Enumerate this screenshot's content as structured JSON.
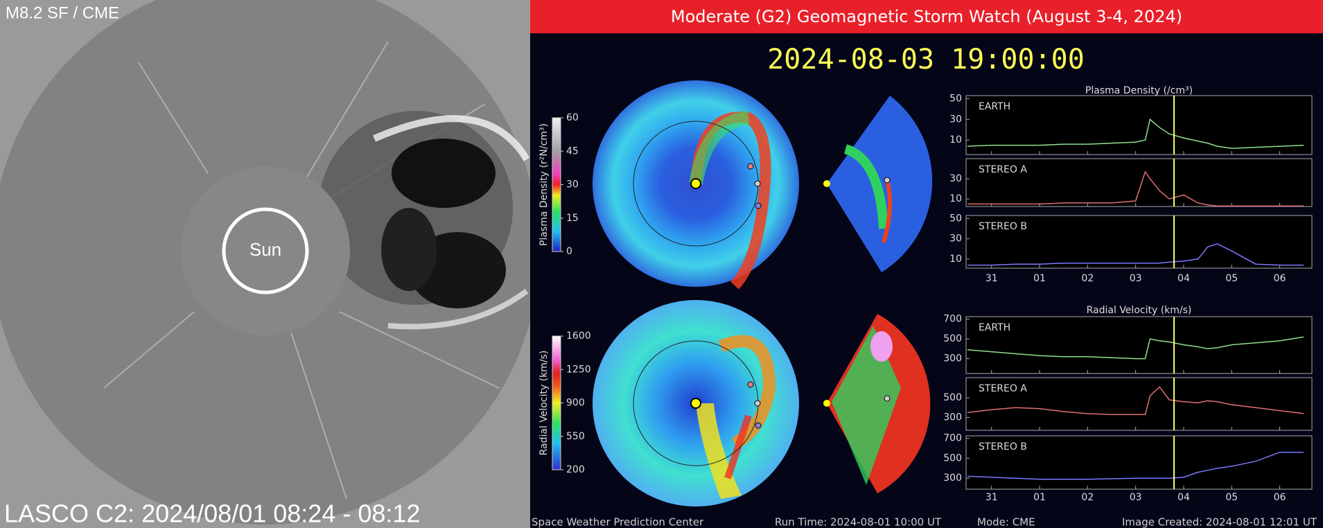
{
  "lasco": {
    "label": "M8.2 SF / CME",
    "sun_label": "Sun",
    "caption": "LASCO C2: 2024/08/01 08:24 - 08:12"
  },
  "enlil": {
    "title": "Moderate (G2) Geomagnetic Storm Watch (August 3-4, 2024)",
    "timestamp": "2024-08-03 19:00:00",
    "density_colorbar": {
      "label": "Plasma Density (r²N/cm³)",
      "lim": [
        0,
        60
      ],
      "ticks": [
        0,
        15,
        30,
        45,
        60
      ]
    },
    "velocity_colorbar": {
      "label": "Radial Velocity (km/s)",
      "lim": [
        200,
        1600
      ],
      "ticks": [
        200,
        550,
        900,
        1250,
        1600
      ]
    },
    "density_plot": {
      "title": "Plasma Density (/cm³)",
      "x": [
        -0.5,
        0,
        0.5,
        1,
        1.5,
        2,
        2.5,
        3,
        3.2,
        3.3,
        3.5,
        3.7,
        4,
        4.3,
        4.5,
        4.7,
        5,
        5.5,
        6,
        6.5
      ],
      "xlim": [
        -0.53,
        6.67
      ],
      "xticks": [
        {
          "value": 0,
          "label": "31"
        },
        {
          "value": 1,
          "label": "01"
        },
        {
          "value": 2,
          "label": "02"
        },
        {
          "value": 3,
          "label": "03"
        },
        {
          "value": 4,
          "label": "04"
        },
        {
          "value": 5,
          "label": "05"
        },
        {
          "value": 6,
          "label": "06"
        }
      ],
      "now": 3.8,
      "panels": [
        {
          "name": "EARTH",
          "color": "#8fe08f",
          "ylim": [
            -4,
            53
          ],
          "yticks": [
            10,
            30,
            50
          ],
          "values": [
            4,
            5,
            5,
            5,
            6,
            6,
            7,
            8,
            10,
            30,
            22,
            16,
            12,
            9,
            7,
            4,
            2,
            3,
            4,
            5
          ]
        },
        {
          "name": "STEREO A",
          "color": "#e07070",
          "ylim": [
            2.5,
            50
          ],
          "yticks": [
            10,
            30
          ],
          "values": [
            5,
            5,
            5,
            5,
            6,
            6,
            6,
            8,
            37,
            30,
            18,
            10,
            14,
            6,
            4,
            3,
            3,
            3,
            3,
            3
          ]
        },
        {
          "name": "STEREO B",
          "color": "#7a7aff",
          "ylim": [
            1,
            53
          ],
          "yticks": [
            10,
            30,
            50
          ],
          "values": [
            4,
            4,
            5,
            5,
            6,
            6,
            6,
            6,
            6,
            6,
            6,
            7,
            8,
            10,
            22,
            25,
            18,
            5,
            4,
            4
          ]
        }
      ]
    },
    "velocity_plot": {
      "title": "Radial Velocity (km/s)",
      "x": [
        -0.5,
        0,
        0.5,
        1,
        1.5,
        2,
        2.5,
        3,
        3.2,
        3.3,
        3.5,
        3.7,
        4,
        4.3,
        4.5,
        4.7,
        5,
        5.5,
        6,
        6.5
      ],
      "xlim": [
        -0.53,
        6.67
      ],
      "xticks": [
        {
          "value": 0,
          "label": "31"
        },
        {
          "value": 1,
          "label": "01"
        },
        {
          "value": 2,
          "label": "02"
        },
        {
          "value": 3,
          "label": "03"
        },
        {
          "value": 4,
          "label": "04"
        },
        {
          "value": 5,
          "label": "05"
        },
        {
          "value": 6,
          "label": "06"
        }
      ],
      "now": 3.8,
      "panels": [
        {
          "name": "EARTH",
          "color": "#8fe08f",
          "ylim": [
            150,
            725
          ],
          "yticks": [
            300,
            500,
            700
          ],
          "values": [
            390,
            370,
            350,
            330,
            320,
            320,
            310,
            300,
            300,
            500,
            480,
            470,
            440,
            420,
            400,
            410,
            440,
            460,
            480,
            520
          ]
        },
        {
          "name": "STEREO A",
          "color": "#e07070",
          "ylim": [
            170,
            705
          ],
          "yticks": [
            300,
            500
          ],
          "values": [
            350,
            380,
            400,
            390,
            360,
            340,
            330,
            330,
            330,
            520,
            610,
            480,
            460,
            450,
            470,
            460,
            430,
            400,
            370,
            340
          ]
        },
        {
          "name": "STEREO B",
          "color": "#7a7aff",
          "ylim": [
            190,
            725
          ],
          "yticks": [
            300,
            500,
            700
          ],
          "values": [
            320,
            310,
            300,
            290,
            290,
            290,
            295,
            300,
            300,
            300,
            300,
            300,
            310,
            360,
            380,
            400,
            420,
            470,
            560,
            560
          ]
        }
      ]
    },
    "footer": {
      "center": "Space Weather Prediction Center",
      "run_time": "Run Time: 2024-08-01 10:00 UT",
      "mode": "Mode: CME",
      "created": "Image Created: 2024-08-01 12:01 UT"
    }
  }
}
